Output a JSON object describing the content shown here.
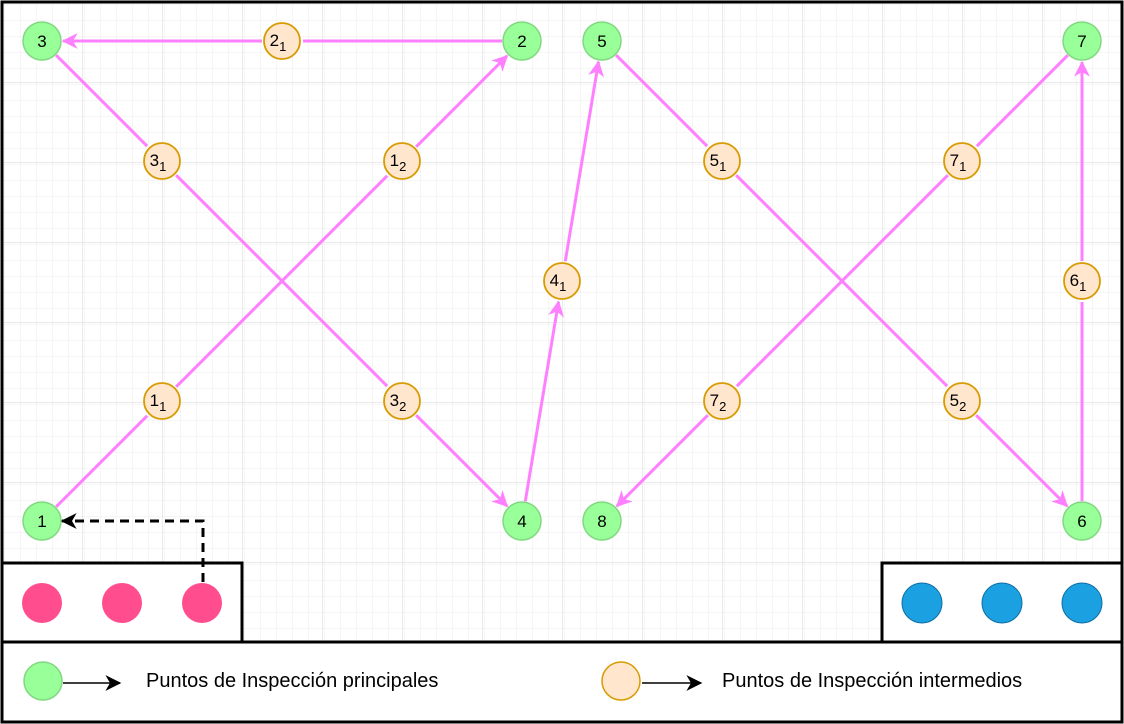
{
  "colors": {
    "main_fill": "#99ff99",
    "main_stroke": "#82d882",
    "inter_fill": "#ffe6cc",
    "inter_stroke": "#d79b00",
    "path": "#ff80ff",
    "robot_start": "#ff4d8d",
    "robot_end": "#1ba1e2",
    "grid": "#e0e0e0",
    "border": "#000000"
  },
  "main_points": [
    {
      "id": "p1",
      "label": "1"
    },
    {
      "id": "p2",
      "label": "2"
    },
    {
      "id": "p3",
      "label": "3"
    },
    {
      "id": "p4",
      "label": "4"
    },
    {
      "id": "p5",
      "label": "5"
    },
    {
      "id": "p6",
      "label": "6"
    },
    {
      "id": "p7",
      "label": "7"
    },
    {
      "id": "p8",
      "label": "8"
    }
  ],
  "intermediate_points": [
    {
      "id": "i11",
      "base": "1",
      "sub": "1"
    },
    {
      "id": "i12",
      "base": "1",
      "sub": "2"
    },
    {
      "id": "i21",
      "base": "2",
      "sub": "1"
    },
    {
      "id": "i31",
      "base": "3",
      "sub": "1"
    },
    {
      "id": "i32",
      "base": "3",
      "sub": "2"
    },
    {
      "id": "i41",
      "base": "4",
      "sub": "1"
    },
    {
      "id": "i51",
      "base": "5",
      "sub": "1"
    },
    {
      "id": "i52",
      "base": "5",
      "sub": "2"
    },
    {
      "id": "i61",
      "base": "6",
      "sub": "1"
    },
    {
      "id": "i71",
      "base": "7",
      "sub": "1"
    },
    {
      "id": "i72",
      "base": "7",
      "sub": "2"
    }
  ],
  "route": [
    "1",
    "2",
    "3",
    "4",
    "5",
    "6",
    "7",
    "8"
  ],
  "robots_left_count": 3,
  "robots_right_count": 3,
  "legend": {
    "main": "Puntos de Inspección principales",
    "intermediate": "Puntos de Inspección intermedios"
  }
}
